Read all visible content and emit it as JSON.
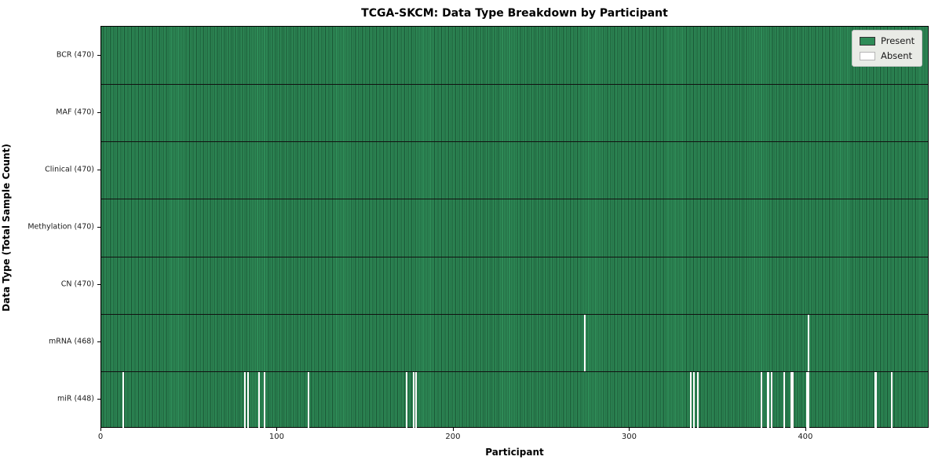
{
  "title": "TCGA-SKCM: Data Type Breakdown by Participant",
  "colors": {
    "present": "#2e8b57",
    "present_edge": "#1b5434",
    "absent": "#ffffff",
    "legend_bg": "#e9ebe6"
  },
  "chart_data": {
    "type": "heatmap",
    "title": "TCGA-SKCM: Data Type Breakdown by Participant",
    "xlabel": "Participant",
    "ylabel": "Data Type (Total Sample Count)",
    "x_range": [
      0,
      470
    ],
    "x_ticks": [
      "0",
      "100",
      "200",
      "300",
      "400"
    ],
    "x_tick_values": [
      0,
      100,
      200,
      300,
      400
    ],
    "n_participants": 470,
    "grid": "row-dividers",
    "legend": {
      "position": "upper-right",
      "items": [
        {
          "label": "Present",
          "color": "#2e8b57"
        },
        {
          "label": "Absent",
          "color": "#ffffff"
        }
      ]
    },
    "rows": [
      {
        "name": "BCR",
        "count": 470,
        "label": "BCR (470)",
        "absent": []
      },
      {
        "name": "MAF",
        "count": 470,
        "label": "MAF (470)",
        "absent": []
      },
      {
        "name": "Clinical",
        "count": 470,
        "label": "Clinical (470)",
        "absent": []
      },
      {
        "name": "Methylation",
        "count": 470,
        "label": "Methylation (470)",
        "absent": []
      },
      {
        "name": "CN",
        "count": 470,
        "label": "CN (470)",
        "absent": []
      },
      {
        "name": "mRNA",
        "count": 468,
        "label": "mRNA (468)",
        "absent": [
          274,
          401
        ]
      },
      {
        "name": "miR",
        "count": 448,
        "label": "miR (448)",
        "absent": [
          12,
          81,
          83,
          89,
          92,
          117,
          173,
          177,
          178,
          334,
          336,
          338,
          374,
          378,
          380,
          387,
          391,
          392,
          400,
          401,
          439,
          448
        ]
      }
    ]
  }
}
